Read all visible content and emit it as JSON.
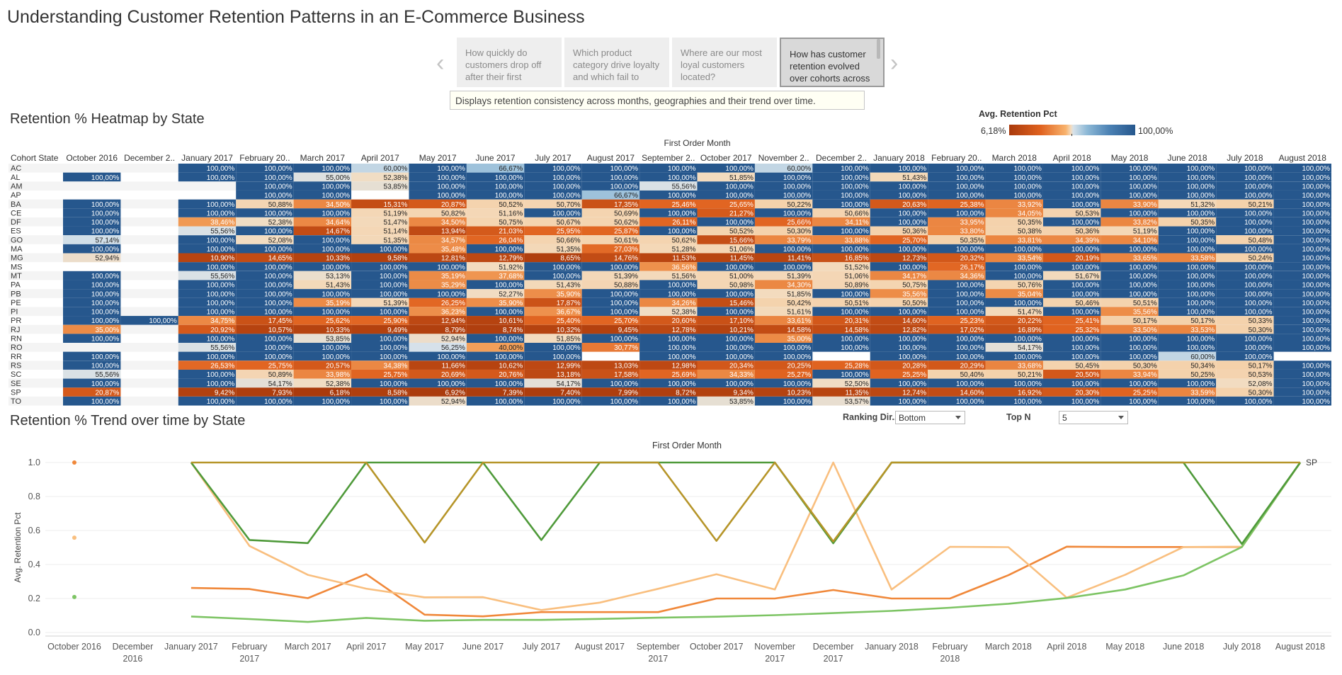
{
  "dashboard": {
    "title": "Understanding Customer Retention Patterns in an E-Commerce Business",
    "story_points": [
      "How quickly do customers drop off after their first",
      "Which product category drive loyalty and which fail to",
      "Where are our most loyal customers located?",
      "How has customer retention evolved over cohorts across"
    ],
    "active_story_index": 3,
    "description": "Displays retention consistency across months, geographies and their trend over time."
  },
  "heatmap_section": {
    "title": "Retention % Heatmap by State",
    "legend": {
      "title": "Avg. Retention Pct",
      "min": "6,18%",
      "max": "100,00%"
    }
  },
  "trend_section": {
    "title": "Retention % Trend over time by State"
  },
  "controls": {
    "ranking_label": "Ranking Dir..",
    "ranking_value": "Bottom",
    "topn_label": "Top N",
    "topn_value": "5"
  },
  "colors": {
    "dark_blue": "#26578d",
    "dark_red": "#a93a0c",
    "orange": "#f0883a",
    "light_orange": "#f9bf7f",
    "dark_green": "#4f9a3a",
    "olive": "#b69529",
    "light_green": "#7dc464"
  },
  "chart_data": [
    {
      "type": "heatmap",
      "title": "Retention % Heatmap by State",
      "x_title": "First Order Month",
      "row_header": "Cohort State",
      "columns": [
        "October 2016",
        "December 2..",
        "January 2017",
        "February 20..",
        "March 2017",
        "April 2017",
        "May 2017",
        "June 2017",
        "July 2017",
        "August 2017",
        "September 2..",
        "October 2017",
        "November 2..",
        "December 2..",
        "January 2018",
        "February 20..",
        "March 2018",
        "April 2018",
        "May 2018",
        "June 2018",
        "July 2018",
        "August 2018"
      ],
      "rows": [
        {
          "state": "AC",
          "values": [
            null,
            null,
            100,
            100,
            100,
            60,
            100,
            66.67,
            100,
            100,
            100,
            100,
            60,
            100,
            100,
            100,
            100,
            100,
            100,
            100,
            100,
            100
          ]
        },
        {
          "state": "AL",
          "values": [
            100,
            null,
            100,
            100,
            55,
            52.38,
            100,
            100,
            100,
            100,
            100,
            51.85,
            100,
            100,
            51.43,
            100,
            100,
            100,
            100,
            100,
            100,
            100
          ]
        },
        {
          "state": "AM",
          "values": [
            null,
            null,
            null,
            100,
            100,
            53.85,
            100,
            100,
            100,
            100,
            55.56,
            100,
            100,
            100,
            100,
            100,
            100,
            100,
            100,
            100,
            100,
            100
          ]
        },
        {
          "state": "AP",
          "values": [
            null,
            null,
            null,
            100,
            100,
            null,
            100,
            100,
            100,
            66.67,
            100,
            100,
            100,
            100,
            100,
            100,
            100,
            100,
            100,
            100,
            100,
            100
          ]
        },
        {
          "state": "BA",
          "values": [
            100,
            null,
            100,
            50.88,
            34.5,
            15.31,
            20.87,
            50.52,
            50.7,
            17.35,
            25.46,
            25.65,
            50.22,
            100,
            20.63,
            25.38,
            33.92,
            100,
            33.9,
            51.32,
            50.21,
            100
          ]
        },
        {
          "state": "CE",
          "values": [
            100,
            null,
            100,
            100,
            100,
            51.19,
            50.82,
            51.16,
            100,
            50.69,
            100,
            21.27,
            100,
            50.66,
            100,
            100,
            34.05,
            50.53,
            100,
            100,
            100,
            100
          ]
        },
        {
          "state": "DF",
          "values": [
            100,
            null,
            38.46,
            52.38,
            34.64,
            51.47,
            34.5,
            50.75,
            50.67,
            50.62,
            26.11,
            100,
            25.66,
            34.11,
            100,
            33.95,
            50.35,
            100,
            33.82,
            50.35,
            100,
            100
          ]
        },
        {
          "state": "ES",
          "values": [
            100,
            null,
            55.56,
            100,
            14.67,
            51.14,
            13.94,
            21.03,
            25.95,
            25.87,
            100,
            50.52,
            50.3,
            100,
            50.36,
            33.8,
            50.38,
            50.36,
            51.19,
            100,
            100,
            100
          ]
        },
        {
          "state": "GO",
          "values": [
            57.14,
            null,
            100,
            52.08,
            100,
            51.35,
            34.57,
            26.04,
            50.66,
            50.61,
            50.62,
            15.66,
            33.79,
            33.88,
            25.7,
            50.35,
            33.81,
            34.39,
            34.1,
            100,
            50.48,
            100
          ]
        },
        {
          "state": "MA",
          "values": [
            100,
            null,
            100,
            100,
            100,
            100,
            35.48,
            100,
            51.35,
            27.03,
            51.28,
            51.06,
            100,
            100,
            100,
            100,
            100,
            100,
            100,
            100,
            100,
            100
          ]
        },
        {
          "state": "MG",
          "values": [
            52.94,
            null,
            10.9,
            14.65,
            10.33,
            9.58,
            12.81,
            12.79,
            8.65,
            14.76,
            11.53,
            11.45,
            11.41,
            16.85,
            12.73,
            20.32,
            33.54,
            20.19,
            33.65,
            33.58,
            50.24,
            100
          ]
        },
        {
          "state": "MS",
          "values": [
            null,
            null,
            100,
            100,
            100,
            100,
            100,
            51.92,
            100,
            100,
            36.56,
            100,
            100,
            51.52,
            100,
            26.17,
            100,
            100,
            100,
            100,
            100,
            100
          ]
        },
        {
          "state": "MT",
          "values": [
            100,
            null,
            55.56,
            100,
            53.13,
            100,
            35.19,
            37.68,
            100,
            51.39,
            51.56,
            51,
            51.39,
            51.06,
            34.17,
            34.36,
            100,
            51.67,
            100,
            100,
            100,
            100
          ]
        },
        {
          "state": "PA",
          "values": [
            100,
            null,
            100,
            100,
            51.43,
            100,
            35.29,
            100,
            51.43,
            50.88,
            100,
            50.98,
            34.3,
            50.89,
            50.75,
            100,
            50.76,
            100,
            100,
            100,
            100,
            100
          ]
        },
        {
          "state": "PB",
          "values": [
            100,
            null,
            100,
            100,
            100,
            100,
            100,
            52.27,
            35.9,
            100,
            100,
            100,
            51.85,
            100,
            35.56,
            100,
            35.04,
            100,
            100,
            100,
            100,
            100
          ]
        },
        {
          "state": "PE",
          "values": [
            100,
            null,
            100,
            100,
            35.19,
            51.39,
            26.25,
            35.9,
            17.87,
            100,
            34.26,
            15.46,
            50.42,
            50.51,
            50.5,
            100,
            100,
            50.46,
            50.51,
            100,
            100,
            100
          ]
        },
        {
          "state": "PI",
          "values": [
            100,
            null,
            100,
            100,
            100,
            100,
            36.23,
            100,
            36.67,
            100,
            52.38,
            100,
            51.61,
            100,
            100,
            100,
            51.47,
            100,
            35.56,
            100,
            100,
            100
          ]
        },
        {
          "state": "PR",
          "values": [
            100,
            100,
            34.75,
            17.45,
            25.62,
            25.9,
            12.94,
            10.61,
            25.4,
            25.7,
            20.6,
            17.1,
            33.61,
            20.31,
            14.6,
            25.23,
            20.22,
            25.41,
            50.17,
            50.17,
            50.33,
            100
          ]
        },
        {
          "state": "RJ",
          "values": [
            35,
            null,
            20.92,
            10.57,
            10.33,
            9.49,
            8.79,
            8.74,
            10.32,
            9.45,
            12.78,
            10.21,
            14.58,
            14.58,
            12.82,
            17.02,
            16.89,
            25.32,
            33.5,
            33.53,
            50.3,
            100
          ]
        },
        {
          "state": "RN",
          "values": [
            100,
            null,
            100,
            100,
            53.85,
            100,
            52.94,
            100,
            51.85,
            100,
            100,
            100,
            35,
            100,
            100,
            100,
            100,
            100,
            100,
            100,
            100,
            100
          ]
        },
        {
          "state": "RO",
          "values": [
            null,
            null,
            55.56,
            100,
            100,
            100,
            56.25,
            40,
            100,
            30.77,
            100,
            100,
            100,
            100,
            100,
            100,
            54.17,
            100,
            100,
            100,
            100,
            100
          ]
        },
        {
          "state": "RR",
          "values": [
            100,
            null,
            100,
            100,
            100,
            100,
            100,
            100,
            100,
            null,
            100,
            100,
            100,
            null,
            100,
            100,
            100,
            100,
            100,
            60,
            100,
            null
          ]
        },
        {
          "state": "RS",
          "values": [
            100,
            null,
            26.53,
            25.75,
            20.57,
            34.38,
            11.66,
            10.62,
            12.99,
            13.03,
            12.98,
            20.34,
            20.25,
            25.28,
            20.28,
            20.29,
            33.68,
            50.45,
            50.3,
            50.34,
            50.17,
            100
          ]
        },
        {
          "state": "SC",
          "values": [
            55.56,
            null,
            100,
            50.89,
            33.98,
            25.75,
            20.69,
            20.76,
            13.18,
            17.58,
            25.69,
            34.33,
            25.27,
            100,
            25.25,
            50.4,
            50.21,
            20.5,
            33.94,
            50.25,
            50.53,
            100
          ]
        },
        {
          "state": "SE",
          "values": [
            100,
            null,
            100,
            54.17,
            52.38,
            100,
            100,
            100,
            54.17,
            100,
            100,
            100,
            100,
            52.5,
            100,
            100,
            100,
            100,
            100,
            100,
            52.08,
            100
          ]
        },
        {
          "state": "SP",
          "values": [
            20.87,
            null,
            9.42,
            7.93,
            6.18,
            8.58,
            6.92,
            7.39,
            7.4,
            7.99,
            8.72,
            9.34,
            10.23,
            11.35,
            12.74,
            14.6,
            16.92,
            20.3,
            25.25,
            33.59,
            50.3,
            100
          ]
        },
        {
          "state": "TO",
          "values": [
            100,
            null,
            100,
            100,
            100,
            100,
            52.94,
            100,
            100,
            100,
            100,
            53.85,
            100,
            53.57,
            100,
            100,
            100,
            100,
            100,
            100,
            100,
            100
          ]
        }
      ]
    },
    {
      "type": "line",
      "title": "Retention % Trend over time by State",
      "xlabel": "First Order Month",
      "ylabel": "Avg. Retention Pct",
      "ylim": [
        0,
        1
      ],
      "yticks": [
        "0.0",
        "0.2",
        "0.4",
        "0.6",
        "0.8",
        "1.0"
      ],
      "categories": [
        "October 2016",
        "December 2016",
        "January 2017",
        "February 2017",
        "March 2017",
        "April 2017",
        "May 2017",
        "June 2017",
        "July 2017",
        "August 2017",
        "September 2017",
        "October 2017",
        "November 2017",
        "December 2017",
        "January 2018",
        "February 2018",
        "March 2018",
        "April 2018",
        "May 2018",
        "June 2018",
        "July 2018",
        "August 2018"
      ],
      "end_label": "SP",
      "series": [
        {
          "color": "#f0883a",
          "values": [
            1,
            null,
            0.262,
            0.256,
            0.202,
            0.343,
            0.105,
            0.095,
            0.12,
            0.12,
            0.12,
            0.2,
            0.2,
            0.25,
            0.2,
            0.2,
            0.337,
            0.505,
            0.503,
            0.503,
            0.503,
            1
          ]
        },
        {
          "color": "#f9bf7f",
          "values": [
            0.558,
            null,
            1,
            0.509,
            0.339,
            0.258,
            0.207,
            0.208,
            0.132,
            0.176,
            0.257,
            0.343,
            0.253,
            1,
            0.253,
            0.504,
            0.502,
            0.205,
            0.339,
            0.503,
            0.505,
            1
          ]
        },
        {
          "color": "#7dc464",
          "values": [
            0.209,
            null,
            0.094,
            0.079,
            0.062,
            0.086,
            0.069,
            0.074,
            0.074,
            0.08,
            0.087,
            0.093,
            0.102,
            0.114,
            0.127,
            0.146,
            0.169,
            0.203,
            0.253,
            0.336,
            0.503,
            1
          ]
        },
        {
          "color": "#4f9a3a",
          "values": [
            null,
            null,
            1,
            0.544,
            0.526,
            1,
            1,
            1,
            0.544,
            1,
            1,
            1,
            1,
            0.525,
            1,
            1,
            1,
            1,
            1,
            1,
            0.521,
            1
          ]
        },
        {
          "color": "#b69529",
          "values": [
            null,
            null,
            1,
            1,
            1,
            1,
            0.529,
            1,
            1,
            1,
            1,
            0.539,
            1,
            0.536,
            1,
            1,
            1,
            1,
            1,
            1,
            1,
            1
          ]
        }
      ]
    }
  ]
}
